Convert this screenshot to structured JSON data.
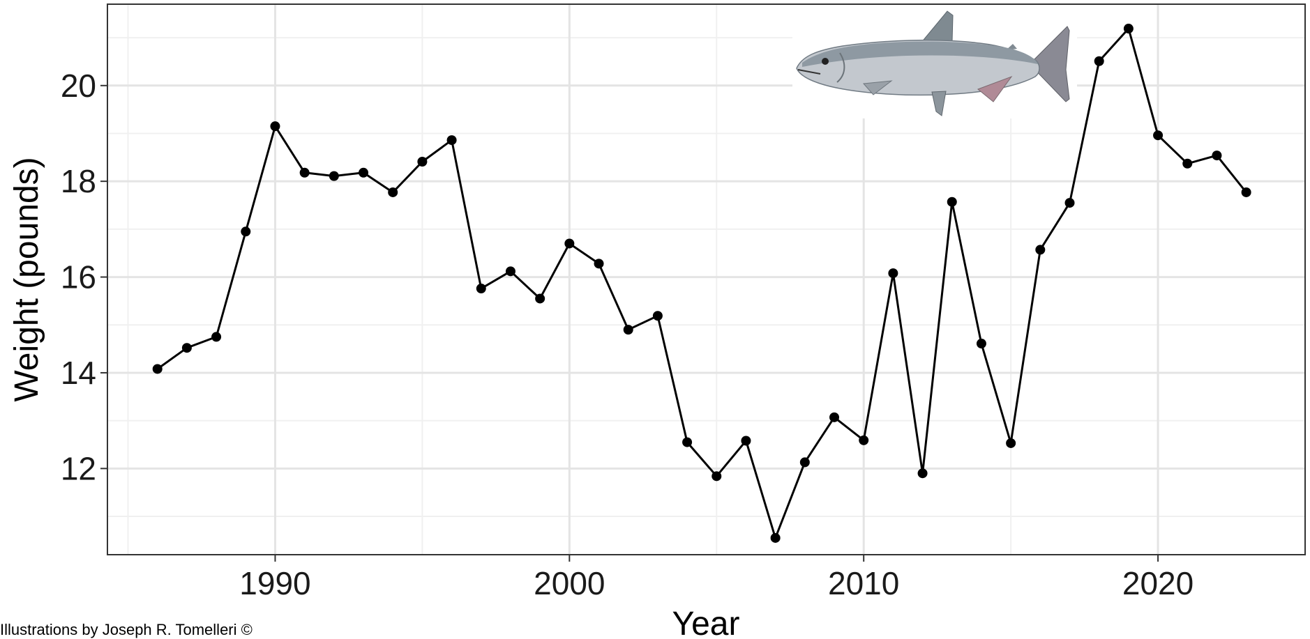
{
  "chart_data": {
    "type": "line",
    "xlabel": "Year",
    "ylabel": "Weight (pounds)",
    "xlim": [
      1984.3,
      2025.0
    ],
    "ylim": [
      10.2,
      21.7
    ],
    "x_ticks": [
      1990,
      2000,
      2010,
      2020
    ],
    "y_ticks": [
      12,
      14,
      16,
      18,
      20
    ],
    "x_minor_grid": [
      1985,
      1995,
      2005,
      2015,
      2025
    ],
    "y_minor_grid": [
      11,
      13,
      15,
      17,
      19,
      21
    ],
    "grid": true,
    "legend": "none",
    "series": [
      {
        "x": [
          1986,
          1987,
          1988,
          1989,
          1990,
          1991,
          1992,
          1993,
          1994,
          1995,
          1996,
          1997,
          1998,
          1999,
          2000,
          2001,
          2002,
          2003,
          2004,
          2005,
          2006,
          2007,
          2008,
          2009,
          2010,
          2011,
          2012,
          2013,
          2014,
          2015,
          2016,
          2017,
          2018,
          2019,
          2020,
          2021,
          2022,
          2023
        ],
        "values": [
          14.08,
          14.52,
          14.75,
          16.95,
          19.15,
          18.18,
          18.11,
          18.18,
          17.77,
          18.41,
          18.86,
          15.76,
          16.12,
          15.55,
          16.7,
          16.28,
          14.9,
          15.19,
          12.55,
          11.84,
          12.58,
          10.55,
          12.13,
          13.07,
          12.59,
          16.08,
          11.9,
          17.57,
          14.61,
          12.53,
          16.57,
          17.55,
          20.51,
          21.19,
          18.96,
          18.37,
          18.54,
          17.77
        ]
      }
    ],
    "colors": {
      "line": "#000000",
      "points": "#000000",
      "grid_major": "#e4e4e4",
      "grid_minor": "#f0f0f0",
      "panel_border": "#333333"
    }
  },
  "illustration": {
    "subject": "chinook-salmon",
    "credit_text": "Illustrations by Joseph R. Tomelleri ©"
  }
}
